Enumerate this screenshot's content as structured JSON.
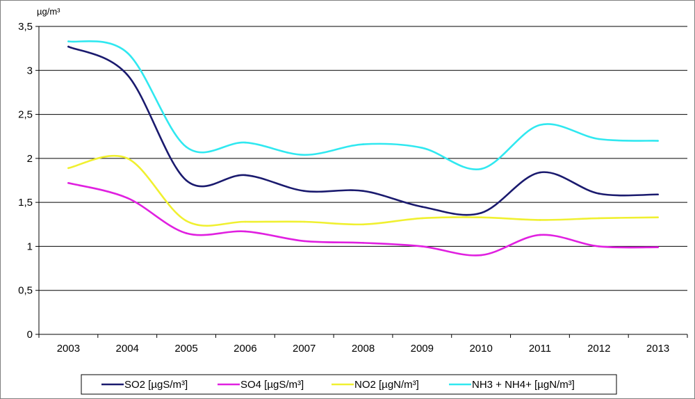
{
  "chart_data": {
    "type": "line",
    "y_unit_label": "µg/m³",
    "ylim": [
      0,
      3.5
    ],
    "y_ticks": [
      {
        "value": 0,
        "label": "0"
      },
      {
        "value": 0.5,
        "label": "0,5"
      },
      {
        "value": 1,
        "label": "1"
      },
      {
        "value": 1.5,
        "label": "1,5"
      },
      {
        "value": 2,
        "label": "2"
      },
      {
        "value": 2.5,
        "label": "2,5"
      },
      {
        "value": 3,
        "label": "3"
      },
      {
        "value": 3.5,
        "label": "3,5"
      }
    ],
    "categories": [
      "2003",
      "2004",
      "2005",
      "2006",
      "2007",
      "2008",
      "2009",
      "2010",
      "2011",
      "2012",
      "2013"
    ],
    "grid": true,
    "legend_position": "bottom",
    "series": [
      {
        "name": "SO2 [µgS/m³]",
        "color": "#1a1a6e",
        "values": [
          3.27,
          2.95,
          1.75,
          1.81,
          1.63,
          1.63,
          1.45,
          1.38,
          1.84,
          1.6,
          1.59
        ]
      },
      {
        "name": "SO4 [µgS/m³]",
        "color": "#e020e0",
        "values": [
          1.72,
          1.55,
          1.15,
          1.17,
          1.06,
          1.04,
          1.0,
          0.9,
          1.13,
          1.0,
          0.99
        ]
      },
      {
        "name": "NO2 [µgN/m³]",
        "color": "#f0f030",
        "values": [
          1.89,
          2.0,
          1.29,
          1.28,
          1.28,
          1.25,
          1.32,
          1.33,
          1.3,
          1.32,
          1.33
        ]
      },
      {
        "name": "NH3 + NH4+ [µgN/m³]",
        "color": "#30e8f0",
        "values": [
          3.33,
          3.2,
          2.13,
          2.18,
          2.04,
          2.16,
          2.12,
          1.88,
          2.38,
          2.22,
          2.2
        ]
      }
    ]
  }
}
